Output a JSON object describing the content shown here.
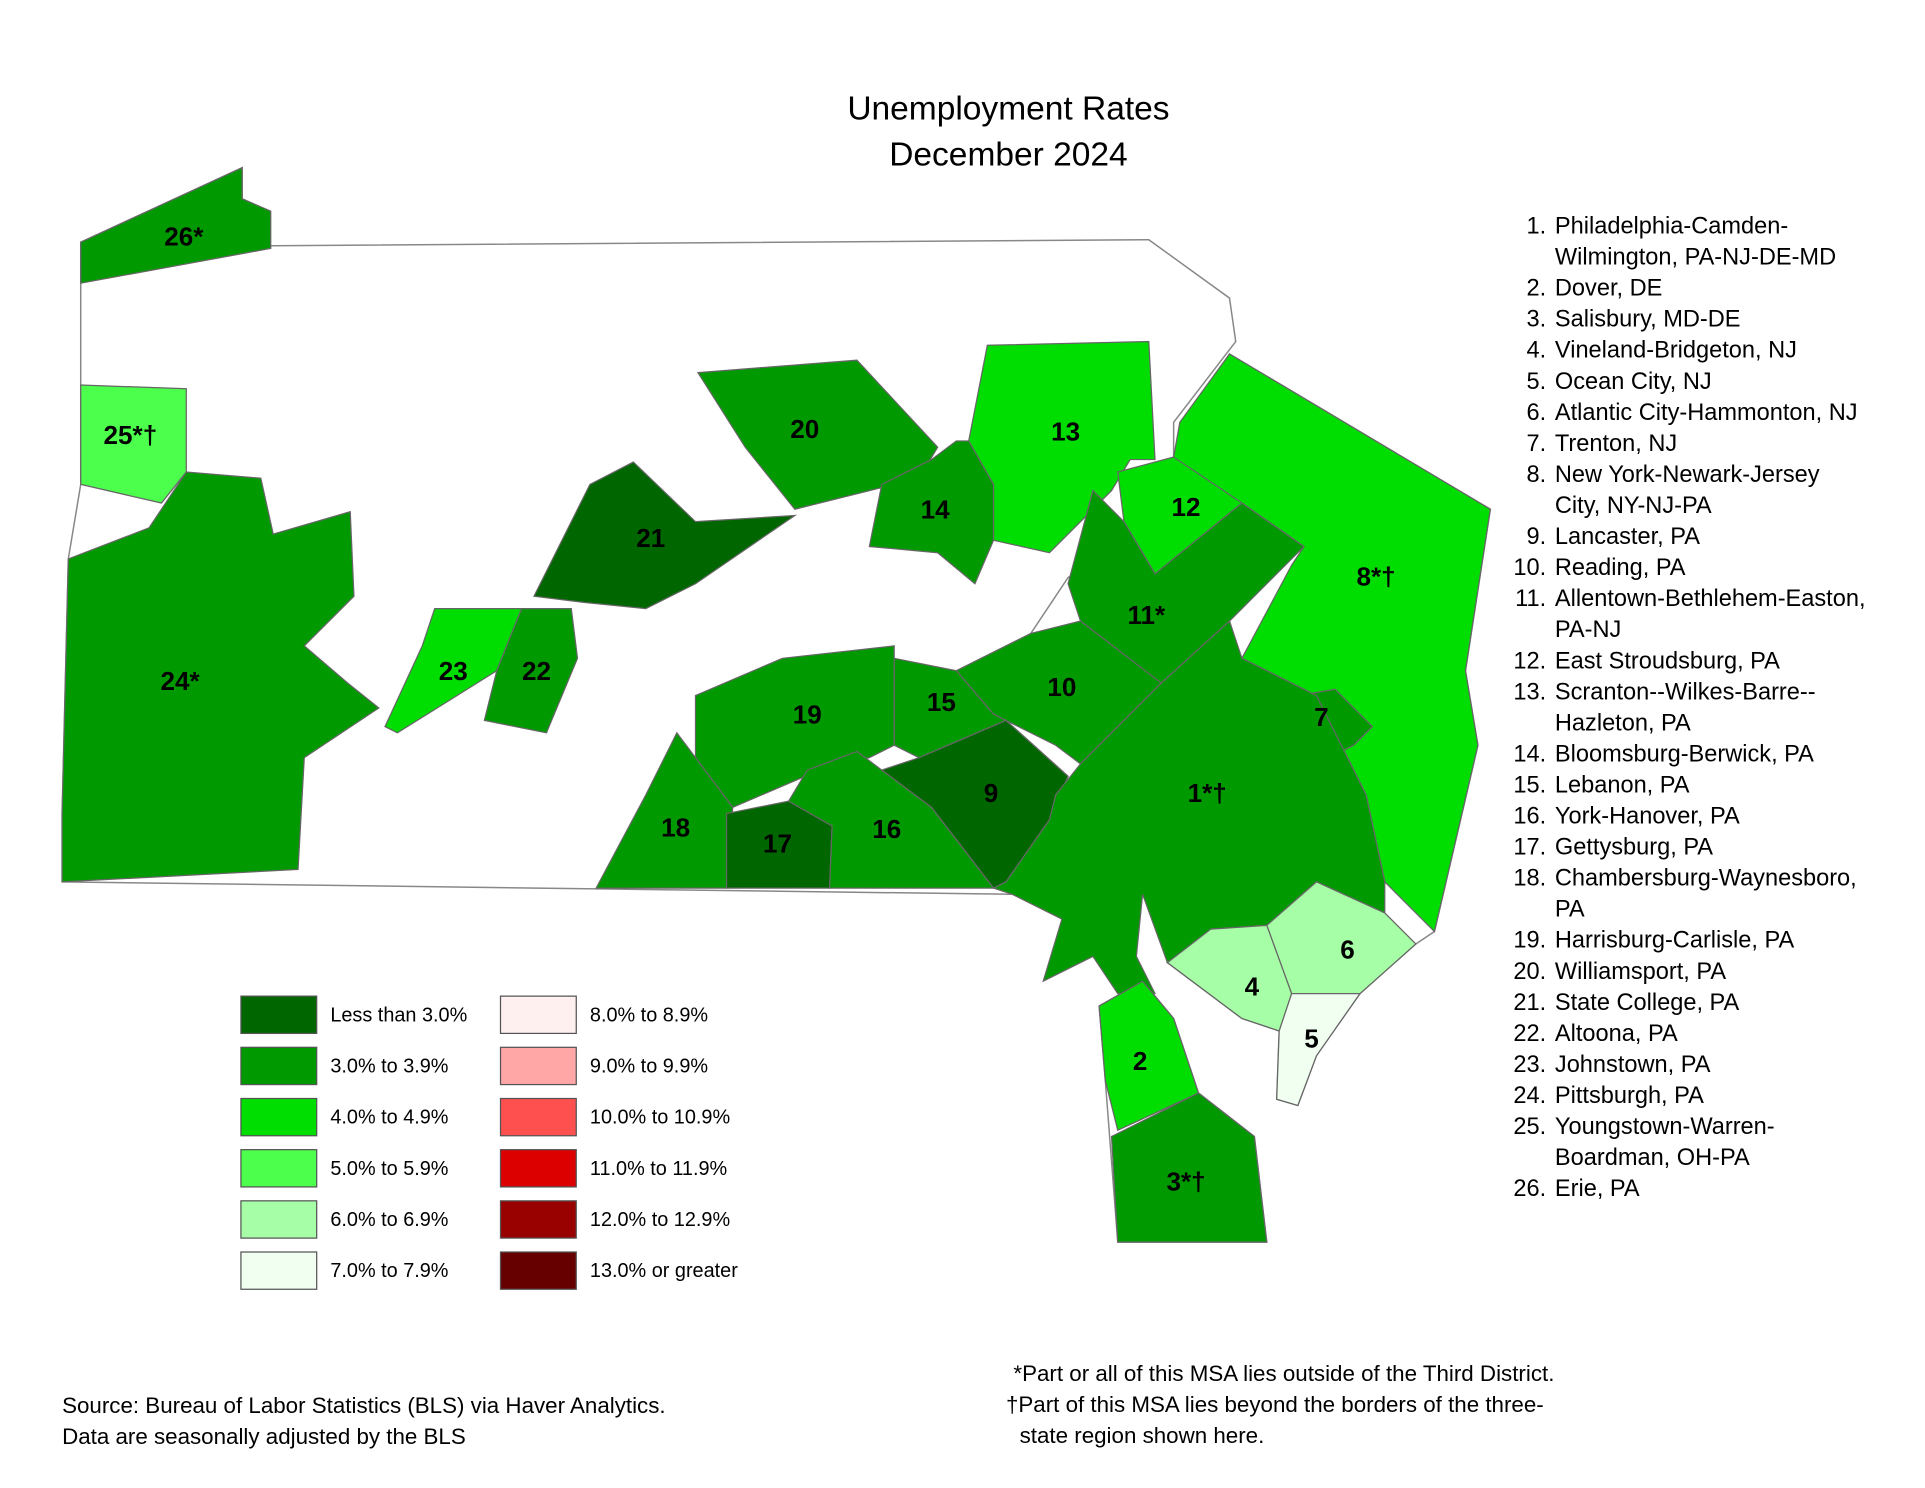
{
  "title": [
    "Unemployment Rates",
    "December 2024"
  ],
  "regions": [
    {
      "label": "26*",
      "color": "#009a00"
    },
    {
      "label": "25*†",
      "color": "#4dff4d"
    },
    {
      "label": "24*",
      "color": "#009a00"
    },
    {
      "label": "23",
      "color": "#00dd00"
    },
    {
      "label": "22",
      "color": "#009a00"
    },
    {
      "label": "21",
      "color": "#006600"
    },
    {
      "label": "20",
      "color": "#009a00"
    },
    {
      "label": "14",
      "color": "#009a00"
    },
    {
      "label": "13",
      "color": "#00dd00"
    },
    {
      "label": "12",
      "color": "#00dd00"
    },
    {
      "label": "11*",
      "color": "#009a00"
    },
    {
      "label": "8*†",
      "color": "#00dd00"
    },
    {
      "label": "7",
      "color": "#009a00"
    },
    {
      "label": "10",
      "color": "#009a00"
    },
    {
      "label": "15",
      "color": "#009a00"
    },
    {
      "label": "19",
      "color": "#009a00"
    },
    {
      "label": "9",
      "color": "#006600"
    },
    {
      "label": "18",
      "color": "#009a00"
    },
    {
      "label": "17",
      "color": "#006600"
    },
    {
      "label": "16",
      "color": "#009a00"
    },
    {
      "label": "1*†",
      "color": "#009a00"
    },
    {
      "label": "6",
      "color": "#a6ffa6"
    },
    {
      "label": "4",
      "color": "#a6ffa6"
    },
    {
      "label": "5",
      "color": "#f0fff0"
    },
    {
      "label": "2",
      "color": "#00dd00"
    },
    {
      "label": "3*†",
      "color": "#009a00"
    }
  ],
  "legend": [
    {
      "label": "Less than 3.0%",
      "color": "#006600"
    },
    {
      "label": "3.0% to 3.9%",
      "color": "#009a00"
    },
    {
      "label": "4.0% to 4.9%",
      "color": "#00dd00"
    },
    {
      "label": "5.0% to 5.9%",
      "color": "#4dff4d"
    },
    {
      "label": "6.0% to 6.9%",
      "color": "#a6ffa6"
    },
    {
      "label": "7.0% to 7.9%",
      "color": "#f0fff0"
    },
    {
      "label": "8.0% to 8.9%",
      "color": "#fff0f0"
    },
    {
      "label": "9.0% to 9.9%",
      "color": "#ffa6a6"
    },
    {
      "label": "10.0% to 10.9%",
      "color": "#ff5050"
    },
    {
      "label": "11.0% to 11.9%",
      "color": "#dd0000"
    },
    {
      "label": "12.0% to 12.9%",
      "color": "#990000"
    },
    {
      "label": "13.0% or greater",
      "color": "#660000"
    }
  ],
  "msa_list": [
    {
      "number": "1.",
      "lines": [
        "Philadelphia-Camden-",
        "Wilmington, PA-NJ-DE-MD"
      ]
    },
    {
      "number": "2.",
      "lines": [
        "Dover, DE"
      ]
    },
    {
      "number": "3.",
      "lines": [
        "Salisbury, MD-DE"
      ]
    },
    {
      "number": "4.",
      "lines": [
        "Vineland-Bridgeton, NJ"
      ]
    },
    {
      "number": "5.",
      "lines": [
        "Ocean City, NJ"
      ]
    },
    {
      "number": "6.",
      "lines": [
        "Atlantic City-Hammonton, NJ"
      ]
    },
    {
      "number": "7.",
      "lines": [
        "Trenton, NJ"
      ]
    },
    {
      "number": "8.",
      "lines": [
        "New York-Newark-Jersey",
        "City, NY-NJ-PA"
      ]
    },
    {
      "number": "9.",
      "lines": [
        "Lancaster, PA"
      ]
    },
    {
      "number": "10.",
      "lines": [
        "Reading, PA"
      ]
    },
    {
      "number": "11.",
      "lines": [
        "Allentown-Bethlehem-Easton,",
        "PA-NJ"
      ]
    },
    {
      "number": "12.",
      "lines": [
        "East Stroudsburg, PA"
      ]
    },
    {
      "number": "13.",
      "lines": [
        "Scranton--Wilkes-Barre--",
        "Hazleton, PA"
      ]
    },
    {
      "number": "14.",
      "lines": [
        "Bloomsburg-Berwick, PA"
      ]
    },
    {
      "number": "15.",
      "lines": [
        "Lebanon, PA"
      ]
    },
    {
      "number": "16.",
      "lines": [
        "York-Hanover, PA"
      ]
    },
    {
      "number": "17.",
      "lines": [
        "Gettysburg, PA"
      ]
    },
    {
      "number": "18.",
      "lines": [
        "Chambersburg-Waynesboro,",
        "PA"
      ]
    },
    {
      "number": "19.",
      "lines": [
        "Harrisburg-Carlisle, PA"
      ]
    },
    {
      "number": "20.",
      "lines": [
        "Williamsport, PA"
      ]
    },
    {
      "number": "21.",
      "lines": [
        "State College, PA"
      ]
    },
    {
      "number": "22.",
      "lines": [
        "Altoona, PA"
      ]
    },
    {
      "number": "23.",
      "lines": [
        "Johnstown, PA"
      ]
    },
    {
      "number": "24.",
      "lines": [
        "Pittsburgh, PA"
      ]
    },
    {
      "number": "25.",
      "lines": [
        "Youngstown-Warren-",
        "Boardman, OH-PA"
      ]
    },
    {
      "number": "26.",
      "lines": [
        "Erie, PA"
      ]
    }
  ],
  "notes": [
    "*Part or all of this MSA lies outside of the Third District.",
    "†Part of this MSA lies beyond the borders of the three-",
    "state region shown here."
  ],
  "source": [
    "Source: Bureau of Labor Statistics (BLS) via Haver Analytics.",
    "Data are seasonally adjusted by the BLS"
  ]
}
